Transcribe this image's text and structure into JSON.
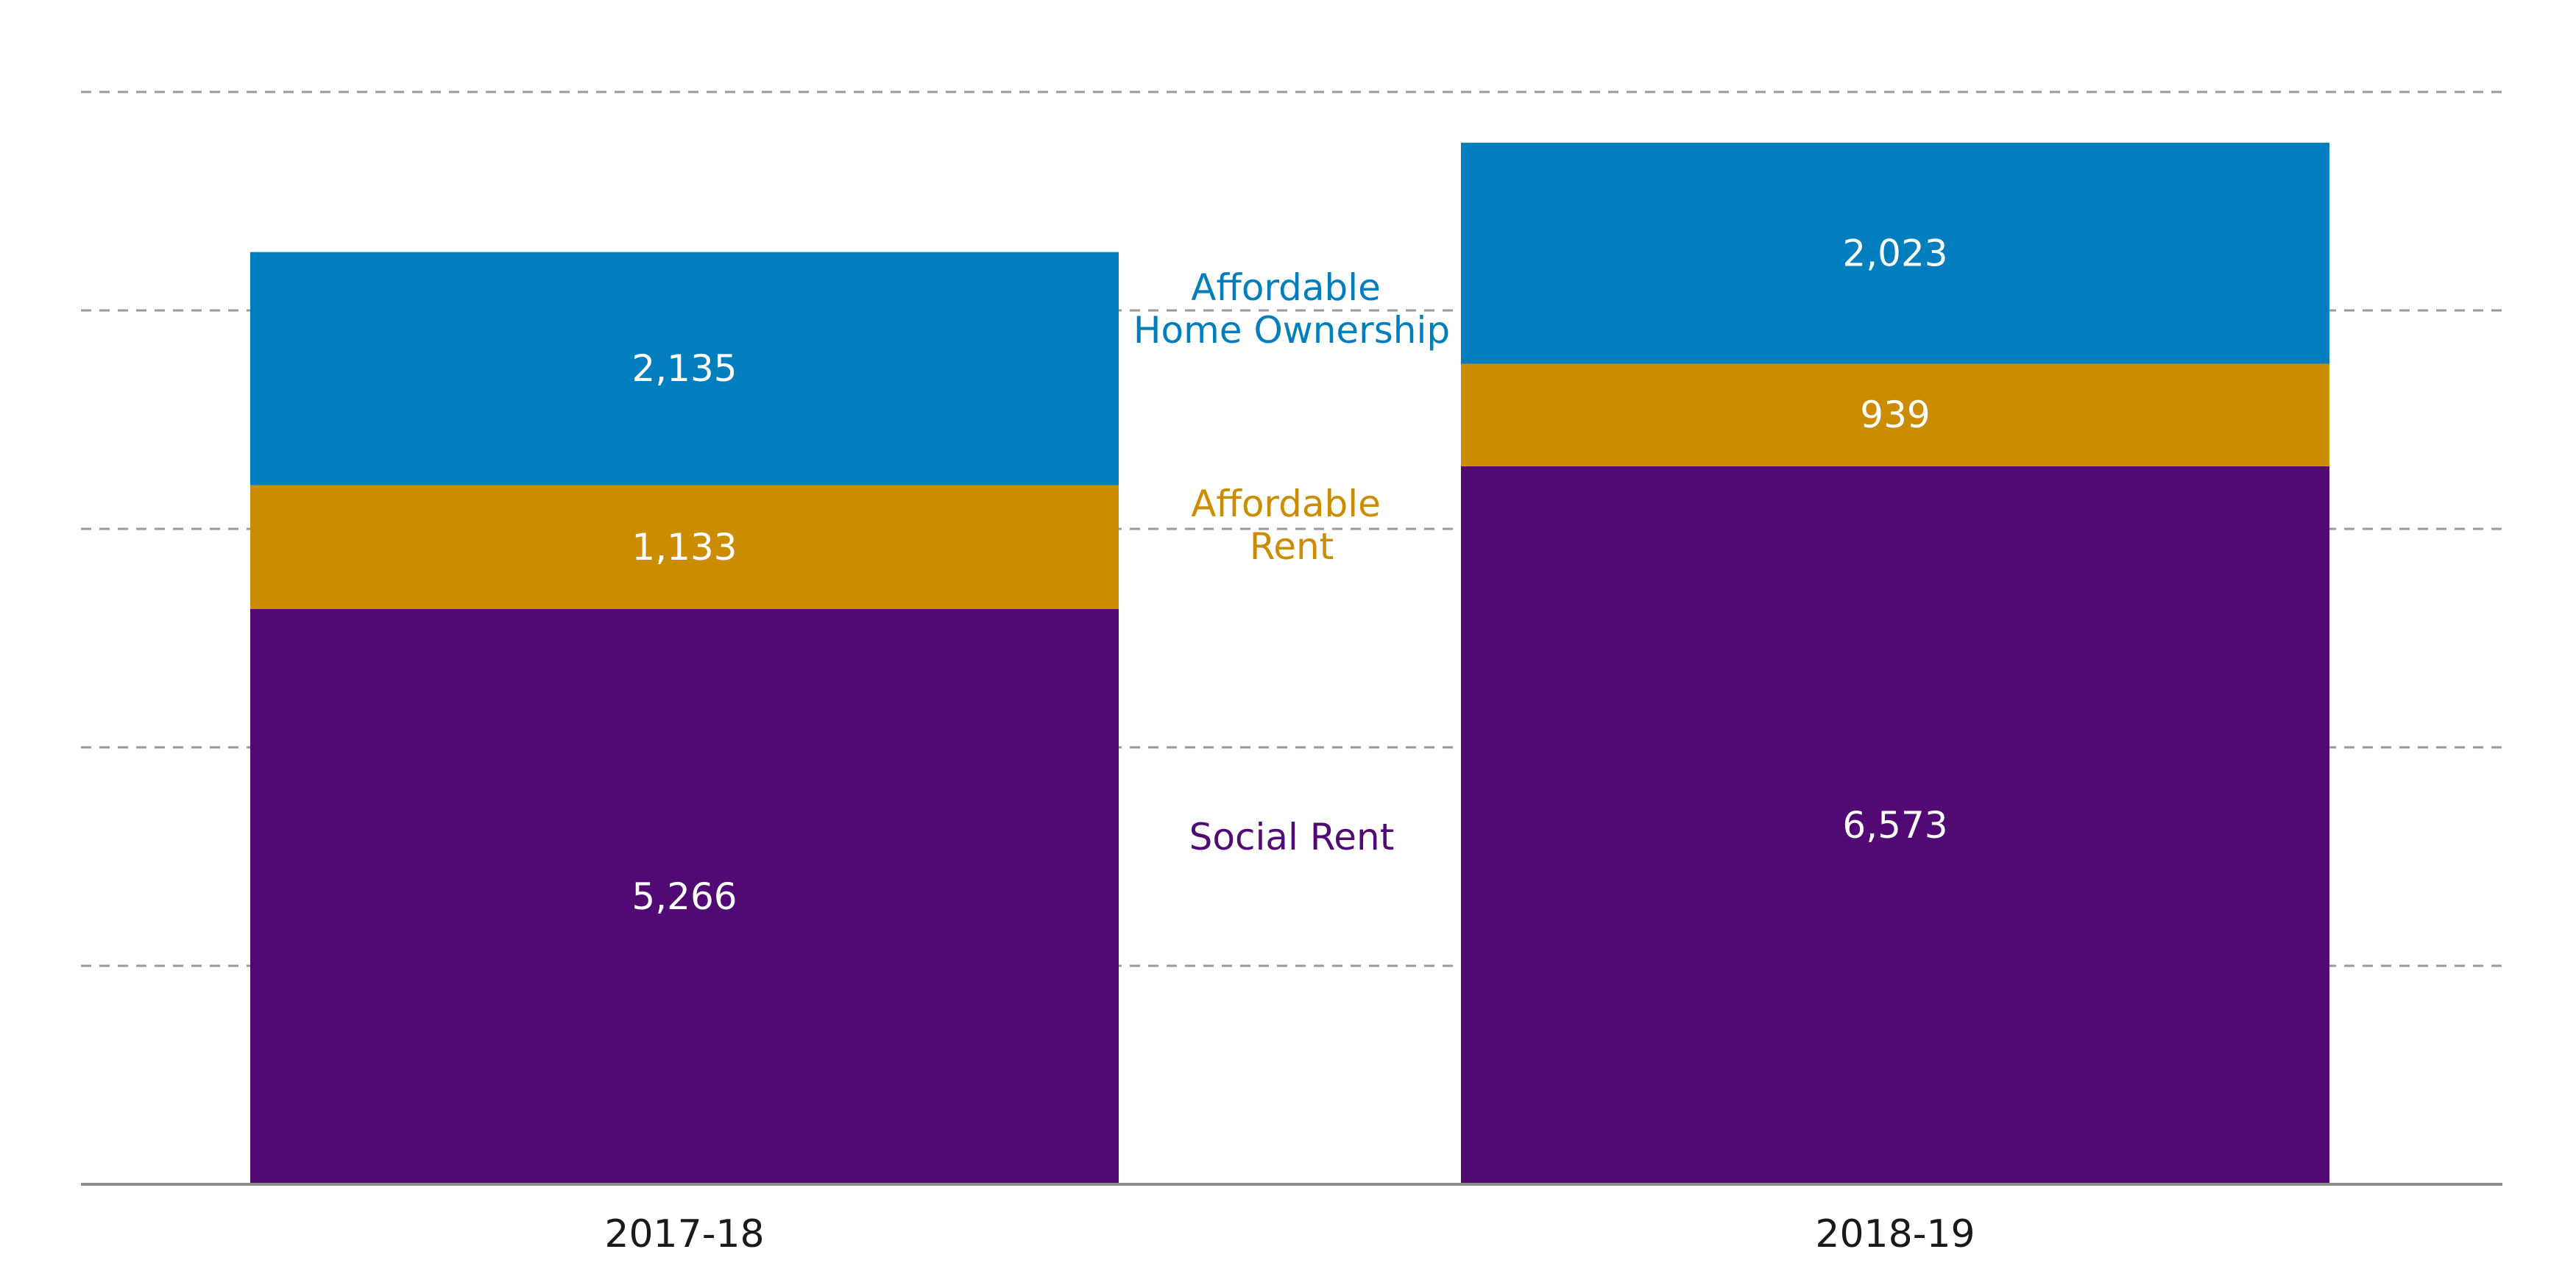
{
  "chart_data": {
    "type": "bar",
    "stacked": true,
    "categories": [
      "2017-18",
      "2018-19"
    ],
    "series": [
      {
        "name": "Social Rent",
        "values": [
          5266,
          6573
        ],
        "color": "#510A73"
      },
      {
        "name": "Affordable Rent",
        "values": [
          1133,
          939
        ],
        "color": "#CC8C00"
      },
      {
        "name": "Affordable Home Ownership",
        "values": [
          2135,
          2023
        ],
        "color": "#007EBD"
      }
    ],
    "data_labels": {
      "2017-18": [
        "5,266",
        "1,133",
        "2,135"
      ],
      "2018-19": [
        "6,573",
        "939",
        "2,023"
      ]
    },
    "series_labels": {
      "social_rent": [
        "Social Rent"
      ],
      "affordable_rent": [
        "Affordable",
        "Rent"
      ],
      "affordable_home_ownership": [
        "Affordable",
        "Home Ownership"
      ]
    },
    "ylim": [
      0,
      10000
    ],
    "grid": true,
    "y_tick_labels_shown": false,
    "legend": "inline-between-bars",
    "title": "",
    "xlabel": "",
    "ylabel": ""
  }
}
